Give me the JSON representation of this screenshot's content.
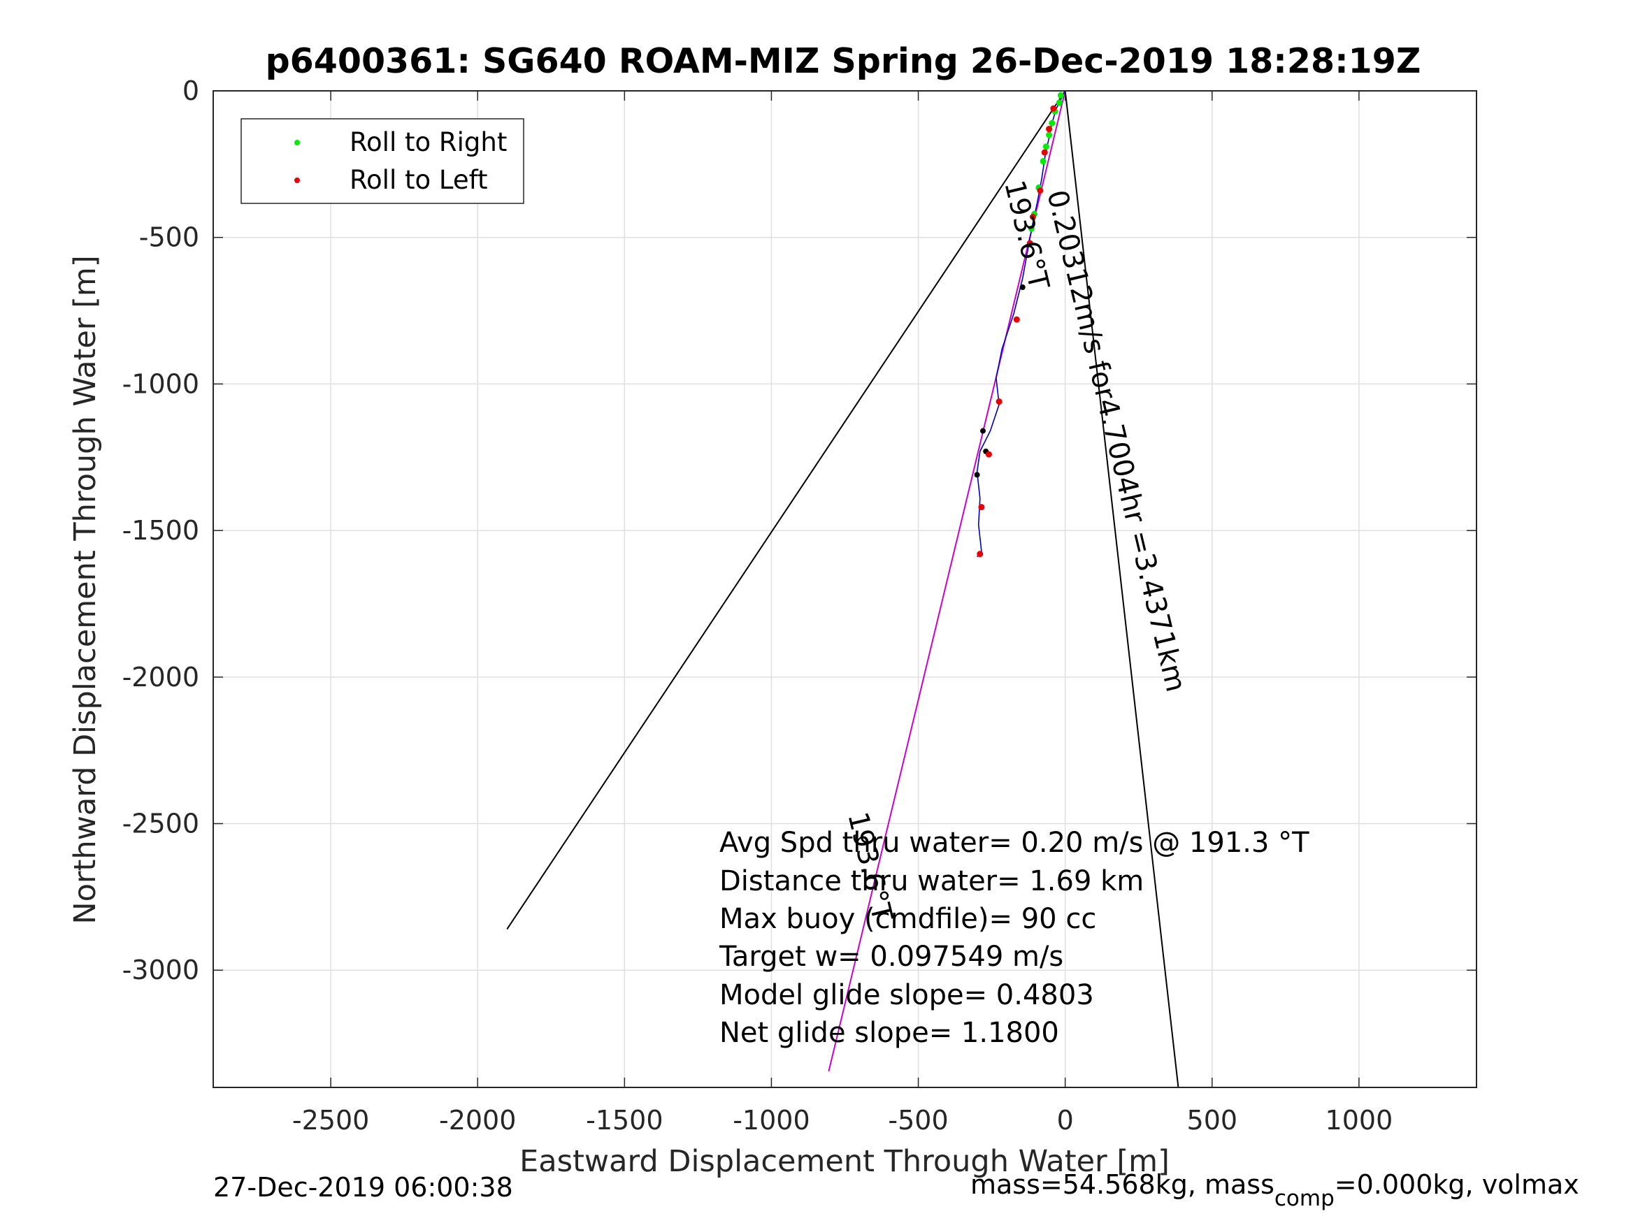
{
  "chart_data": {
    "type": "scatter",
    "title": "p6400361: SG640 ROAM-MIZ Spring 26-Dec-2019 18:28:19Z",
    "xlabel": "Eastward Displacement Through Water [m]",
    "ylabel": "Northward Displacement Through Water [m]",
    "xlim": [
      -2900,
      1400
    ],
    "ylim": [
      -3400,
      0
    ],
    "xticks": [
      -2500,
      -2000,
      -1500,
      -1000,
      -500,
      0,
      500,
      1000
    ],
    "yticks": [
      0,
      -500,
      -1000,
      -1500,
      -2000,
      -2500,
      -3000
    ],
    "grid": true,
    "legend_position": "top-left",
    "legend": [
      {
        "label": "Roll to Right",
        "color": "#00ee00"
      },
      {
        "label": "Roll to Left",
        "color": "#ee0000"
      }
    ],
    "colors": {
      "track": "#0000cc",
      "current": "#cc00cc",
      "roll_right": "#00ee00",
      "roll_left": "#ee0000",
      "neutral": "#000000",
      "reference_lines": "#000000"
    },
    "series": [
      {
        "name": "Roll to Right",
        "color": "#00ee00",
        "points": [
          [
            -15,
            -15
          ],
          [
            -20,
            -40
          ],
          [
            -35,
            -70
          ],
          [
            -45,
            -110
          ],
          [
            -55,
            -150
          ],
          [
            -65,
            -190
          ],
          [
            -75,
            -240
          ],
          [
            -90,
            -330
          ],
          [
            -105,
            -420
          ],
          [
            -115,
            -470
          ]
        ]
      },
      {
        "name": "Roll to Left",
        "color": "#ee0000",
        "points": [
          [
            -40,
            -60
          ],
          [
            -55,
            -130
          ],
          [
            -70,
            -210
          ],
          [
            -85,
            -340
          ],
          [
            -110,
            -430
          ],
          [
            -120,
            -520
          ],
          [
            -165,
            -780
          ],
          [
            -225,
            -1060
          ],
          [
            -260,
            -1240
          ],
          [
            -285,
            -1420
          ],
          [
            -290,
            -1580
          ]
        ]
      }
    ],
    "track": [
      [
        0,
        0
      ],
      [
        -15,
        -30
      ],
      [
        -30,
        -60
      ],
      [
        -45,
        -110
      ],
      [
        -55,
        -160
      ],
      [
        -68,
        -220
      ],
      [
        -80,
        -300
      ],
      [
        -95,
        -380
      ],
      [
        -110,
        -450
      ],
      [
        -125,
        -530
      ],
      [
        -145,
        -640
      ],
      [
        -175,
        -760
      ],
      [
        -215,
        -880
      ],
      [
        -235,
        -980
      ],
      [
        -225,
        -1070
      ],
      [
        -255,
        -1160
      ],
      [
        -290,
        -1230
      ],
      [
        -300,
        -1300
      ],
      [
        -290,
        -1390
      ],
      [
        -295,
        -1480
      ],
      [
        -285,
        -1570
      ],
      [
        -300,
        -1590
      ]
    ],
    "neutral_points": [
      [
        -145,
        -670
      ],
      [
        -280,
        -1160
      ],
      [
        -300,
        -1310
      ],
      [
        -270,
        -1230
      ]
    ],
    "current_line": [
      [
        0,
        0
      ],
      [
        -805,
        -3345
      ]
    ],
    "reference_lines": [
      [
        [
          0,
          0
        ],
        [
          -1900,
          -2860
        ]
      ],
      [
        [
          0,
          0
        ],
        [
          385,
          -3400
        ]
      ]
    ],
    "annotations": {
      "heading_top": "193.6°T",
      "speed_line": "0.20312m/s for4.7004hr =3.4371km",
      "heading_bottom": "193.6°T",
      "stats": [
        "Avg Spd thru water=  0.20 m/s @ 191.3 °T",
        "Distance thru water=  1.69 km",
        "Max buoy (cmdfile)= 90 cc",
        "Target w= 0.097549 m/s",
        "Model glide slope= 0.4803",
        "Net glide slope= 1.1800"
      ]
    }
  },
  "footer": {
    "timestamp": "27-Dec-2019 06:00:38",
    "mass_prefix": "mass=54.568kg, mass",
    "mass_sub": "comp",
    "mass_suffix": "=0.000kg, volmax"
  }
}
